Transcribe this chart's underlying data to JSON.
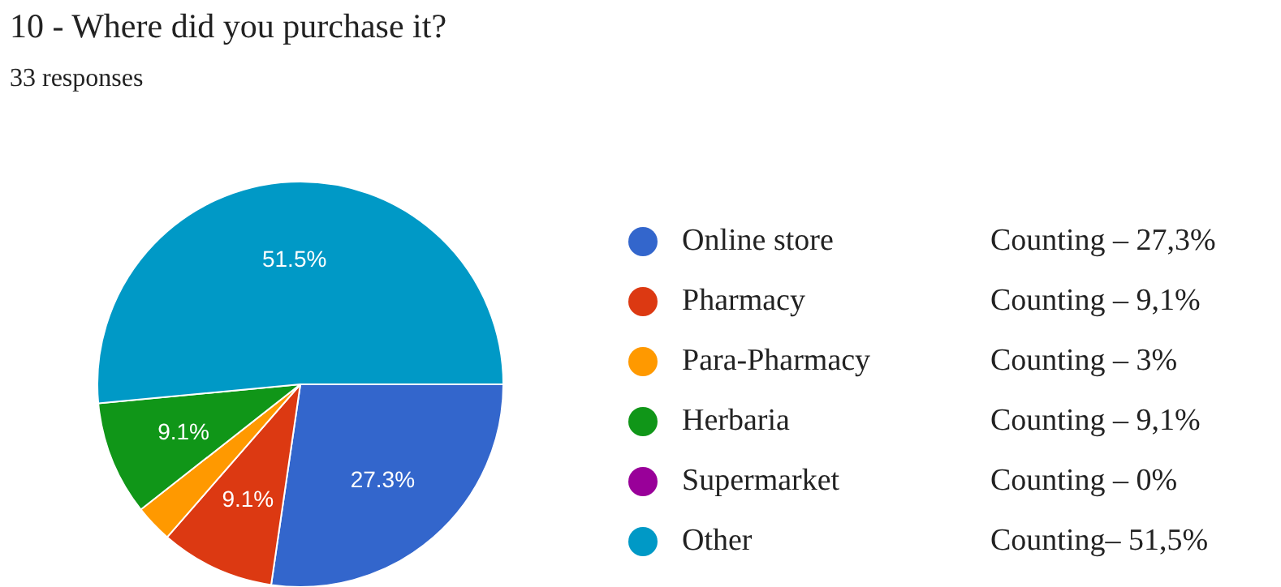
{
  "chart_data": {
    "type": "pie",
    "title": "10 - Where did you purchase it?",
    "subtitle": "33 responses",
    "categories": [
      "Online store",
      "Pharmacy",
      "Para-Pharmacy",
      "Herbaria",
      "Supermarket",
      "Other"
    ],
    "values": [
      27.3,
      9.1,
      3,
      9.1,
      0,
      51.5
    ],
    "colors": [
      "#3366cc",
      "#dc3912",
      "#ff9900",
      "#109618",
      "#990099",
      "#0099c6"
    ],
    "value_labels": [
      "27.3%",
      "9.1%",
      null,
      "9.1%",
      null,
      "51.5%"
    ],
    "annotations": [
      "Counting – 27,3%",
      "Counting – 9,1%",
      "Counting – 3%",
      "Counting – 9,1%",
      "Counting – 0%",
      "Counting– 51,5%"
    ],
    "legend": "right"
  }
}
